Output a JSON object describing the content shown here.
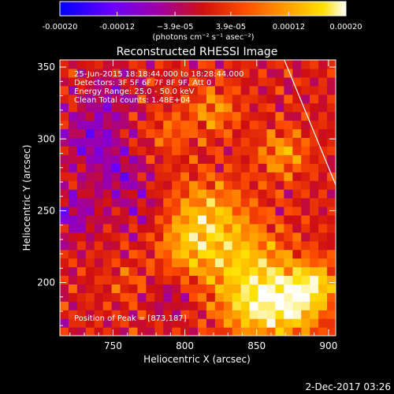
{
  "chart_data": {
    "type": "heatmap",
    "title": "Reconstructed RHESSI Image",
    "xlabel": "Heliocentric X (arcsec)",
    "ylabel": "Heliocentric Y (arcsec)",
    "xlim": [
      713,
      905
    ],
    "ylim": [
      163,
      355
    ],
    "x_ticks": [
      750,
      800,
      850,
      900
    ],
    "y_ticks": [
      200,
      250,
      300,
      350
    ],
    "colorbar": {
      "min": -0.0002,
      "max": 0.0002,
      "unit_label": "(photons cm⁻² s⁻¹ asec⁻²)",
      "tick_values": [
        -0.0002,
        -0.00012,
        -3.9e-05,
        3.9e-05,
        0.00012,
        0.0002
      ],
      "tick_labels": [
        "-0.00020",
        "-0.00012",
        "−3.9e-05",
        "3.9e-05",
        "0.00012",
        "0.00020"
      ],
      "colormap": [
        "#0000ff",
        "#6a00ff",
        "#a000a0",
        "#d01010",
        "#ff5000",
        "#ffa000",
        "#ffe000",
        "#ffffff"
      ]
    },
    "annotations": [
      "25-Jun-2015 18:18:44.000 to 18:28:44.000",
      "Detectors: 3F 5F 6F 7F 8F 9F, Att 0",
      "Energy Range: 25.0 - 50.0 keV",
      "Clean     Total counts: 1.48E+04"
    ],
    "peak_label": "Position of Peak = [873,187]",
    "peak": [
      873,
      187
    ],
    "limb_line": {
      "x": [
        868,
        905
      ],
      "y": [
        358,
        268
      ]
    },
    "sources": [
      {
        "x": 873,
        "y": 187,
        "amplitude": 0.0002,
        "width": 16
      },
      {
        "x": 840,
        "y": 212,
        "amplitude": 0.00013,
        "width": 22
      },
      {
        "x": 815,
        "y": 248,
        "amplitude": 0.00011,
        "width": 18
      },
      {
        "x": 800,
        "y": 225,
        "amplitude": 8e-05,
        "width": 14
      },
      {
        "x": 820,
        "y": 320,
        "amplitude": 9e-05,
        "width": 12
      },
      {
        "x": 868,
        "y": 290,
        "amplitude": 0.0001,
        "width": 12
      },
      {
        "x": 893,
        "y": 200,
        "amplitude": 0.00011,
        "width": 10
      },
      {
        "x": 845,
        "y": 180,
        "amplitude": 9e-05,
        "width": 14
      },
      {
        "x": 790,
        "y": 305,
        "amplitude": 6e-05,
        "width": 10
      },
      {
        "x": 760,
        "y": 200,
        "amplitude": 4e-05,
        "width": 10
      },
      {
        "x": 735,
        "y": 300,
        "amplitude": -9e-05,
        "width": 14
      },
      {
        "x": 755,
        "y": 275,
        "amplitude": -7e-05,
        "width": 12
      },
      {
        "x": 722,
        "y": 248,
        "amplitude": -8e-05,
        "width": 12
      },
      {
        "x": 748,
        "y": 330,
        "amplitude": -6e-05,
        "width": 12
      },
      {
        "x": 790,
        "y": 190,
        "amplitude": -5e-05,
        "width": 10
      },
      {
        "x": 770,
        "y": 250,
        "amplitude": -4e-05,
        "width": 12
      }
    ]
  },
  "footer": {
    "date_stamp": "2-Dec-2017 03:26"
  }
}
